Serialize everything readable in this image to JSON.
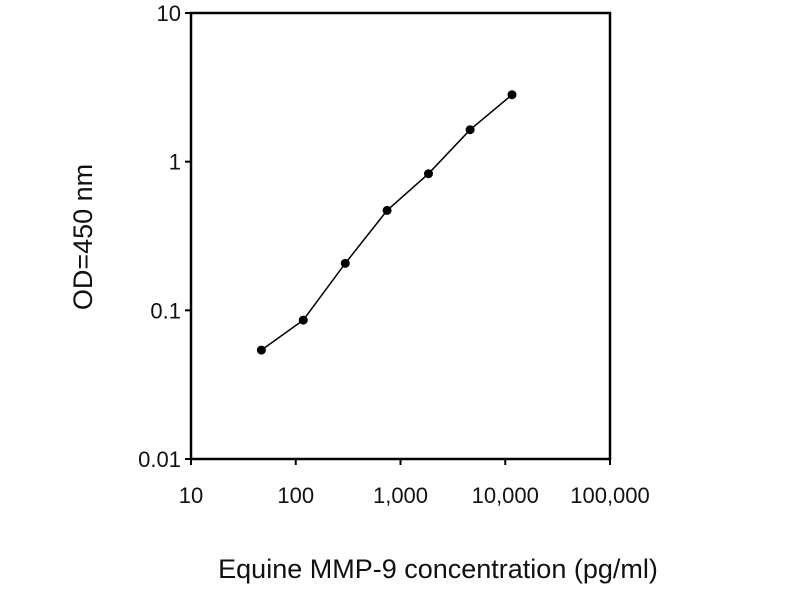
{
  "chart_data": {
    "type": "line",
    "title": "",
    "xlabel": "Equine MMP-9 concentration (pg/ml)",
    "ylabel": "OD=450 nm",
    "xscale": "log",
    "yscale": "log",
    "xlim": [
      10,
      100000
    ],
    "ylim": [
      0.01,
      10
    ],
    "xticks": [
      10,
      100,
      1000,
      10000,
      100000
    ],
    "xtick_labels": [
      "10",
      "100",
      "1,000",
      "10,000",
      "100,000"
    ],
    "yticks": [
      0.01,
      0.1,
      1,
      10
    ],
    "ytick_labels": [
      "0.01",
      "0.1",
      "1",
      "10"
    ],
    "grid": false,
    "series": [
      {
        "x": [
          47,
          118,
          297,
          745,
          1850,
          4620,
          11600
        ],
        "y": [
          0.054,
          0.086,
          0.207,
          0.47,
          0.83,
          1.64,
          2.82
        ],
        "color": "#000000",
        "marker": "circle"
      }
    ]
  }
}
